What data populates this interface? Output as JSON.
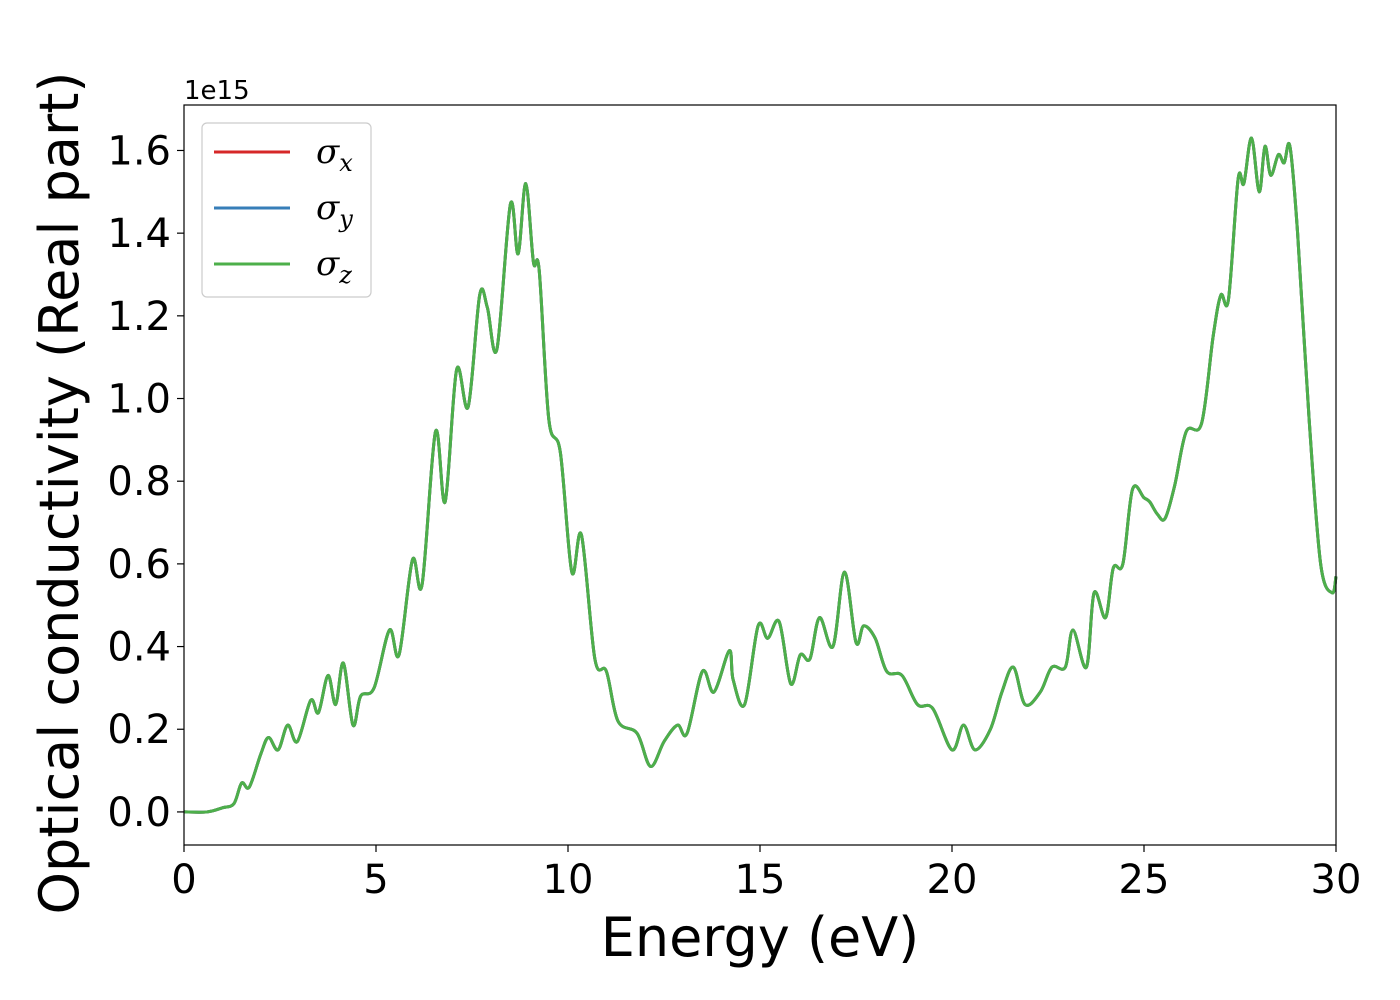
{
  "chart_data": {
    "type": "line",
    "title": "",
    "xlabel": "Energy (eV)",
    "ylabel": "Optical conductivity (Real part)",
    "y_offset_text": "1e15",
    "xlim": [
      0,
      30
    ],
    "ylim": [
      -0.08,
      1.71
    ],
    "xticks": [
      0,
      5,
      10,
      15,
      20,
      25,
      30
    ],
    "yticks": [
      0.0,
      0.2,
      0.4,
      0.6,
      0.8,
      1.0,
      1.2,
      1.4,
      1.6
    ],
    "xtick_labels": [
      "0",
      "5",
      "10",
      "15",
      "20",
      "25",
      "30"
    ],
    "ytick_labels": [
      "0.0",
      "0.2",
      "0.4",
      "0.6",
      "0.8",
      "1.0",
      "1.2",
      "1.4",
      "1.6"
    ],
    "grid": false,
    "legend_position": "upper-left",
    "x": [
      0,
      0.6,
      1.0,
      1.3,
      1.5,
      1.7,
      2.0,
      2.2,
      2.45,
      2.7,
      2.95,
      3.3,
      3.5,
      3.75,
      3.95,
      4.15,
      4.4,
      4.6,
      4.95,
      5.35,
      5.6,
      5.95,
      6.2,
      6.55,
      6.8,
      7.1,
      7.4,
      7.7,
      7.9,
      8.15,
      8.5,
      8.7,
      8.9,
      9.1,
      9.25,
      9.5,
      9.8,
      10.1,
      10.35,
      10.7,
      11.0,
      11.3,
      11.8,
      12.15,
      12.5,
      12.85,
      13.1,
      13.5,
      13.8,
      14.2,
      14.3,
      14.6,
      14.95,
      15.2,
      15.5,
      15.8,
      16.05,
      16.3,
      16.55,
      16.9,
      17.2,
      17.5,
      17.7,
      18.0,
      18.3,
      18.7,
      19.1,
      19.5,
      20.0,
      20.3,
      20.6,
      21.0,
      21.3,
      21.6,
      21.9,
      22.3,
      22.6,
      22.95,
      23.15,
      23.5,
      23.7,
      24.0,
      24.2,
      24.45,
      24.7,
      25.0,
      25.15,
      25.35,
      25.55,
      25.8,
      26.1,
      26.5,
      26.8,
      27.0,
      27.2,
      27.45,
      27.6,
      27.8,
      28.0,
      28.15,
      28.3,
      28.5,
      28.65,
      28.8,
      29.0,
      29.3,
      29.6,
      29.9,
      30.0
    ],
    "series": [
      {
        "name": "σx",
        "color": "#d62728",
        "values": [
          0.0,
          0.0,
          0.01,
          0.02,
          0.07,
          0.06,
          0.14,
          0.18,
          0.15,
          0.21,
          0.17,
          0.27,
          0.24,
          0.33,
          0.26,
          0.36,
          0.21,
          0.28,
          0.3,
          0.44,
          0.38,
          0.61,
          0.55,
          0.92,
          0.75,
          1.07,
          0.98,
          1.25,
          1.22,
          1.12,
          1.47,
          1.35,
          1.52,
          1.33,
          1.31,
          0.95,
          0.87,
          0.58,
          0.67,
          0.37,
          0.34,
          0.22,
          0.19,
          0.11,
          0.17,
          0.21,
          0.19,
          0.34,
          0.29,
          0.39,
          0.32,
          0.26,
          0.45,
          0.42,
          0.46,
          0.31,
          0.38,
          0.37,
          0.47,
          0.4,
          0.58,
          0.41,
          0.45,
          0.42,
          0.34,
          0.33,
          0.26,
          0.25,
          0.15,
          0.21,
          0.15,
          0.2,
          0.29,
          0.35,
          0.26,
          0.29,
          0.35,
          0.35,
          0.44,
          0.35,
          0.53,
          0.47,
          0.59,
          0.6,
          0.78,
          0.76,
          0.75,
          0.72,
          0.71,
          0.79,
          0.92,
          0.94,
          1.15,
          1.25,
          1.24,
          1.53,
          1.52,
          1.63,
          1.5,
          1.61,
          1.54,
          1.59,
          1.57,
          1.61,
          1.4,
          0.95,
          0.6,
          0.53,
          0.57
        ]
      },
      {
        "name": "σy",
        "color": "#377eb8",
        "values": [
          0.0,
          0.0,
          0.01,
          0.02,
          0.07,
          0.06,
          0.14,
          0.18,
          0.15,
          0.21,
          0.17,
          0.27,
          0.24,
          0.33,
          0.26,
          0.36,
          0.21,
          0.28,
          0.3,
          0.44,
          0.38,
          0.61,
          0.55,
          0.92,
          0.75,
          1.07,
          0.98,
          1.25,
          1.22,
          1.12,
          1.47,
          1.35,
          1.52,
          1.33,
          1.31,
          0.95,
          0.87,
          0.58,
          0.67,
          0.37,
          0.34,
          0.22,
          0.19,
          0.11,
          0.17,
          0.21,
          0.19,
          0.34,
          0.29,
          0.39,
          0.32,
          0.26,
          0.45,
          0.42,
          0.46,
          0.31,
          0.38,
          0.37,
          0.47,
          0.4,
          0.58,
          0.41,
          0.45,
          0.42,
          0.34,
          0.33,
          0.26,
          0.25,
          0.15,
          0.21,
          0.15,
          0.2,
          0.29,
          0.35,
          0.26,
          0.29,
          0.35,
          0.35,
          0.44,
          0.35,
          0.53,
          0.47,
          0.59,
          0.6,
          0.78,
          0.76,
          0.75,
          0.72,
          0.71,
          0.79,
          0.92,
          0.94,
          1.15,
          1.25,
          1.24,
          1.53,
          1.52,
          1.63,
          1.5,
          1.61,
          1.54,
          1.59,
          1.57,
          1.61,
          1.4,
          0.95,
          0.6,
          0.53,
          0.57
        ]
      },
      {
        "name": "σz",
        "color": "#4daf4a",
        "values": [
          0.0,
          0.0,
          0.01,
          0.02,
          0.07,
          0.06,
          0.14,
          0.18,
          0.15,
          0.21,
          0.17,
          0.27,
          0.24,
          0.33,
          0.26,
          0.36,
          0.21,
          0.28,
          0.3,
          0.44,
          0.38,
          0.61,
          0.55,
          0.92,
          0.75,
          1.07,
          0.98,
          1.25,
          1.22,
          1.12,
          1.47,
          1.35,
          1.52,
          1.33,
          1.31,
          0.95,
          0.87,
          0.58,
          0.67,
          0.37,
          0.34,
          0.22,
          0.19,
          0.11,
          0.17,
          0.21,
          0.19,
          0.34,
          0.29,
          0.39,
          0.32,
          0.26,
          0.45,
          0.42,
          0.46,
          0.31,
          0.38,
          0.37,
          0.47,
          0.4,
          0.58,
          0.41,
          0.45,
          0.42,
          0.34,
          0.33,
          0.26,
          0.25,
          0.15,
          0.21,
          0.15,
          0.2,
          0.29,
          0.35,
          0.26,
          0.29,
          0.35,
          0.35,
          0.44,
          0.35,
          0.53,
          0.47,
          0.59,
          0.6,
          0.78,
          0.76,
          0.75,
          0.72,
          0.71,
          0.79,
          0.92,
          0.94,
          1.15,
          1.25,
          1.24,
          1.53,
          1.52,
          1.63,
          1.5,
          1.61,
          1.54,
          1.59,
          1.57,
          1.61,
          1.4,
          0.95,
          0.6,
          0.53,
          0.57
        ]
      }
    ],
    "legend": [
      {
        "symbol": "σ",
        "subscript": "x",
        "color": "#d62728"
      },
      {
        "symbol": "σ",
        "subscript": "y",
        "color": "#377eb8"
      },
      {
        "symbol": "σ",
        "subscript": "z",
        "color": "#4daf4a"
      }
    ]
  }
}
